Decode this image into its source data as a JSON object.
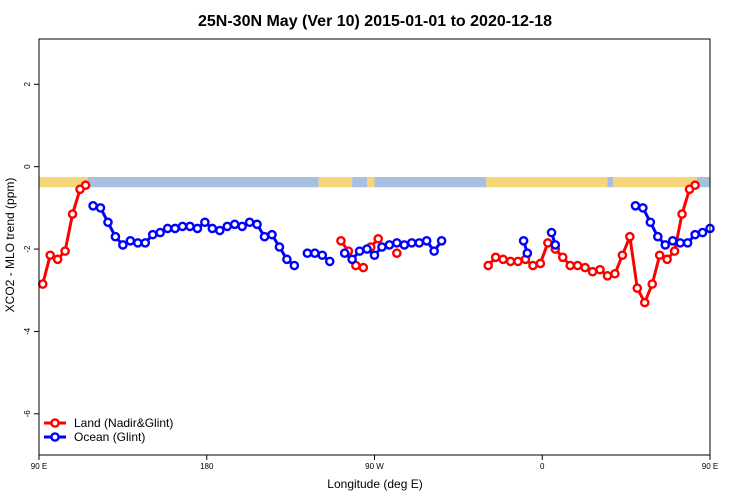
{
  "chart_data": {
    "type": "line",
    "title": "25N-30N May (Ver 10)   2015-01-01 to 2020-12-18",
    "xlabel": "Longitude (deg E)",
    "ylabel": "XCO2 - MLO trend (ppm)",
    "xlim": [
      90,
      450
    ],
    "ylim": [
      -7,
      3.1
    ],
    "x_ticks": [
      {
        "value": 90,
        "label": "90 E"
      },
      {
        "value": 180,
        "label": "180"
      },
      {
        "value": 270,
        "label": "90 W"
      },
      {
        "value": 360,
        "label": "0"
      },
      {
        "value": 450,
        "label": "90 E"
      },
      {
        "value": 540,
        "label": "180"
      }
    ],
    "y_ticks": [
      {
        "value": 2,
        "label": "2"
      },
      {
        "value": 0,
        "label": "0"
      },
      {
        "value": -2,
        "label": "-2"
      },
      {
        "value": -4,
        "label": "-4"
      },
      {
        "value": -6,
        "label": "-6"
      }
    ],
    "land_ocean_band": {
      "y_top": -0.25,
      "y_bottom": -0.5,
      "land_color": "#f5d77a",
      "ocean_color": "#a8bfe0"
    },
    "legend_position": "bottom-left",
    "series": [
      {
        "name": "Land (Nadir&Glint)",
        "color": "#ff0000",
        "segments": [
          [
            [
              92,
              -2.85
            ],
            [
              96,
              -2.15
            ],
            [
              100,
              -2.25
            ],
            [
              104,
              -2.05
            ],
            [
              108,
              -1.15
            ],
            [
              112,
              -0.55
            ],
            [
              115,
              -0.45
            ]
          ],
          [
            [
              252,
              -1.8
            ],
            [
              256,
              -2.05
            ],
            [
              260,
              -2.4
            ],
            [
              264,
              -2.45
            ]
          ],
          [
            [
              268,
              -1.95
            ],
            [
              272,
              -1.75
            ]
          ],
          [
            [
              282,
              -2.1
            ]
          ],
          [
            [
              331,
              -2.4
            ],
            [
              335,
              -2.2
            ],
            [
              339,
              -2.25
            ],
            [
              343,
              -2.3
            ],
            [
              347,
              -2.3
            ],
            [
              351,
              -2.25
            ],
            [
              355,
              -2.4
            ],
            [
              359,
              -2.35
            ],
            [
              363,
              -1.85
            ],
            [
              367,
              -2.0
            ],
            [
              371,
              -2.2
            ],
            [
              375,
              -2.4
            ],
            [
              379,
              -2.4
            ],
            [
              383,
              -2.45
            ],
            [
              387,
              -2.55
            ],
            [
              391,
              -2.5
            ],
            [
              395,
              -2.65
            ],
            [
              399,
              -2.6
            ],
            [
              403,
              -2.15
            ],
            [
              407,
              -1.7
            ],
            [
              411,
              -2.95
            ],
            [
              415,
              -3.3
            ],
            [
              419,
              -2.85
            ],
            [
              423,
              -2.15
            ],
            [
              427,
              -2.25
            ],
            [
              431,
              -2.05
            ],
            [
              435,
              -1.15
            ],
            [
              439,
              -0.55
            ],
            [
              442,
              -0.45
            ]
          ]
        ]
      },
      {
        "name": "Ocean (Glint)",
        "color": "#0000ff",
        "segments": [
          [
            [
              119,
              -0.95
            ],
            [
              123,
              -1.0
            ],
            [
              127,
              -1.35
            ],
            [
              131,
              -1.7
            ],
            [
              135,
              -1.9
            ],
            [
              139,
              -1.8
            ],
            [
              143,
              -1.85
            ],
            [
              147,
              -1.85
            ],
            [
              151,
              -1.65
            ],
            [
              155,
              -1.6
            ],
            [
              159,
              -1.5
            ],
            [
              163,
              -1.5
            ],
            [
              167,
              -1.45
            ],
            [
              171,
              -1.45
            ],
            [
              175,
              -1.5
            ],
            [
              179,
              -1.35
            ],
            [
              183,
              -1.5
            ],
            [
              187,
              -1.55
            ],
            [
              191,
              -1.45
            ],
            [
              195,
              -1.4
            ],
            [
              199,
              -1.45
            ],
            [
              203,
              -1.35
            ],
            [
              207,
              -1.4
            ],
            [
              211,
              -1.7
            ],
            [
              215,
              -1.65
            ],
            [
              219,
              -1.95
            ],
            [
              223,
              -2.25
            ],
            [
              227,
              -2.4
            ]
          ],
          [
            [
              234,
              -2.1
            ],
            [
              238,
              -2.1
            ],
            [
              242,
              -2.15
            ],
            [
              246,
              -2.3
            ]
          ],
          [
            [
              254,
              -2.1
            ],
            [
              258,
              -2.25
            ],
            [
              262,
              -2.05
            ],
            [
              266,
              -2.0
            ],
            [
              270,
              -2.15
            ],
            [
              274,
              -1.95
            ],
            [
              278,
              -1.9
            ],
            [
              282,
              -1.85
            ],
            [
              286,
              -1.9
            ],
            [
              290,
              -1.85
            ],
            [
              294,
              -1.85
            ],
            [
              298,
              -1.8
            ],
            [
              302,
              -2.05
            ],
            [
              306,
              -1.8
            ]
          ],
          [
            [
              350,
              -1.8
            ],
            [
              352,
              -2.1
            ]
          ],
          [
            [
              365,
              -1.6
            ],
            [
              367,
              -1.9
            ]
          ],
          [
            [
              410,
              -0.95
            ],
            [
              414,
              -1.0
            ],
            [
              418,
              -1.35
            ],
            [
              422,
              -1.7
            ],
            [
              426,
              -1.9
            ],
            [
              430,
              -1.8
            ],
            [
              434,
              -1.85
            ],
            [
              438,
              -1.85
            ],
            [
              442,
              -1.65
            ],
            [
              446,
              -1.6
            ],
            [
              450,
              -1.5
            ]
          ]
        ]
      }
    ]
  }
}
